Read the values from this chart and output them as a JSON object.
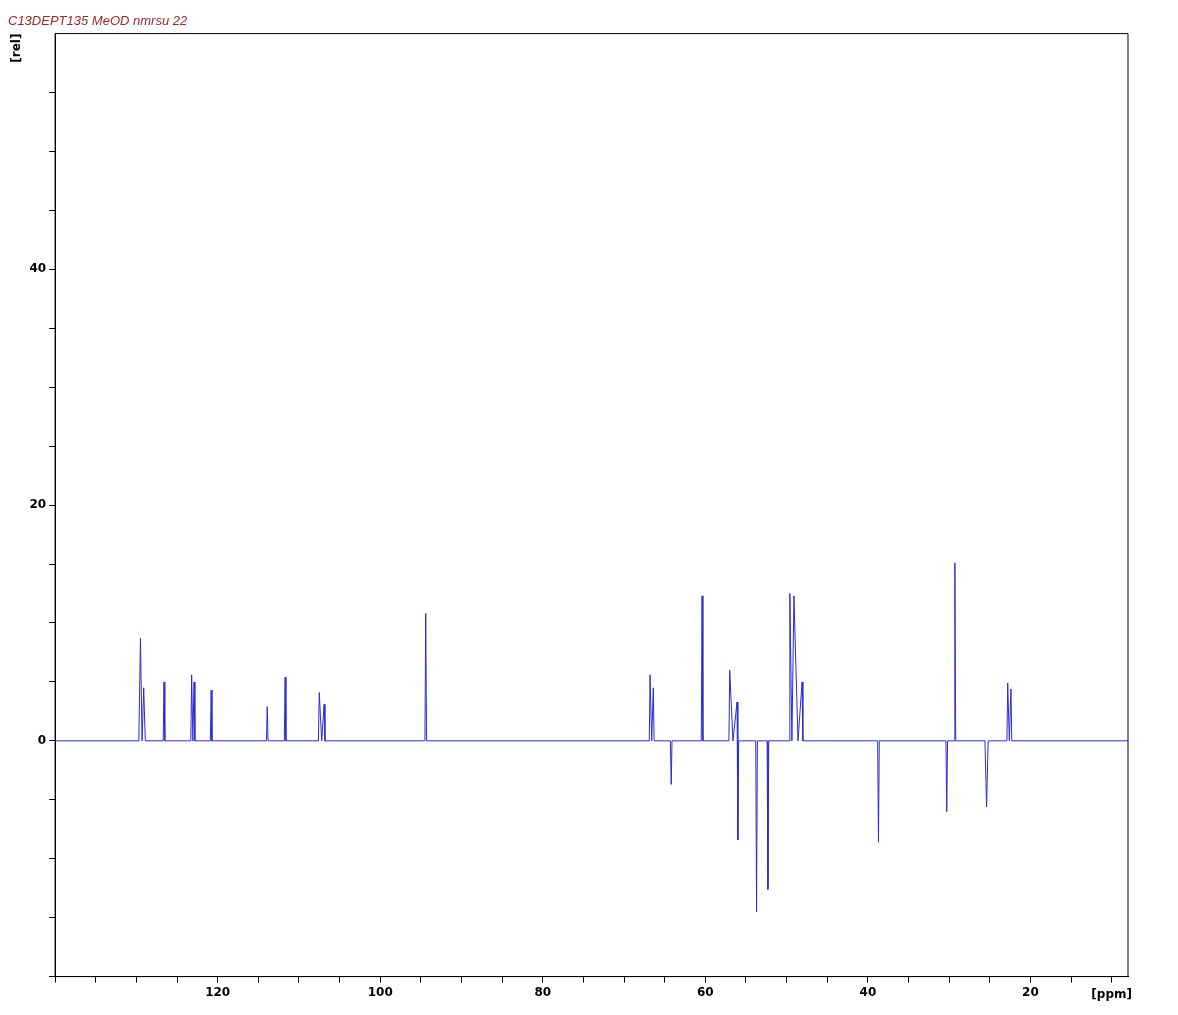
{
  "chart_data": {
    "type": "line",
    "title": "C13DEPT135 MeOD nmrsu 22",
    "xlabel": "[ppm]",
    "ylabel": "[rel]",
    "xlim": [
      140,
      8
    ],
    "ylim": [
      -20,
      60
    ],
    "xticks": [
      {
        "value": 140,
        "label": null
      },
      {
        "value": 135,
        "label": null
      },
      {
        "value": 130,
        "label": null
      },
      {
        "value": 125,
        "label": null
      },
      120,
      {
        "value": 115,
        "label": null
      },
      {
        "value": 110,
        "label": null
      },
      {
        "value": 105,
        "label": null
      },
      100,
      {
        "value": 95,
        "label": null
      },
      {
        "value": 90,
        "label": null
      },
      {
        "value": 85,
        "label": null
      },
      80,
      {
        "value": 75,
        "label": null
      },
      {
        "value": 70,
        "label": null
      },
      {
        "value": 65,
        "label": null
      },
      60,
      {
        "value": 55,
        "label": null
      },
      {
        "value": 50,
        "label": null
      },
      {
        "value": 45,
        "label": null
      },
      40,
      {
        "value": 35,
        "label": null
      },
      {
        "value": 30,
        "label": null
      },
      {
        "value": 25,
        "label": null
      },
      20,
      {
        "value": 15,
        "label": null
      },
      {
        "value": 10,
        "label": null
      }
    ],
    "yticks": [
      {
        "value": -20,
        "label": null
      },
      {
        "value": -15,
        "label": null
      },
      {
        "value": -10,
        "label": null
      },
      {
        "value": -5,
        "label": null
      },
      0,
      {
        "value": 5,
        "label": null
      },
      {
        "value": 10,
        "label": null
      },
      {
        "value": 15,
        "label": null
      },
      20,
      {
        "value": 25,
        "label": null
      },
      {
        "value": 30,
        "label": null
      },
      {
        "value": 35,
        "label": null
      },
      40,
      {
        "value": 45,
        "label": null
      },
      {
        "value": 50,
        "label": null
      },
      {
        "value": 55,
        "label": null
      }
    ],
    "grid": false,
    "legend": false,
    "marker": "none",
    "line_style": "solid",
    "series": [
      {
        "color": "#2b2bd6",
        "x": [
          140,
          129.7,
          129.5,
          129.3,
          129.1,
          128.9,
          126.7,
          126.6,
          126.5,
          123.3,
          123.2,
          123.05,
          122.9,
          122.8,
          120.9,
          120.8,
          120.7,
          114.0,
          113.9,
          113.8,
          111.8,
          111.7,
          111.6,
          107.6,
          107.5,
          107.2,
          106.9,
          106.8,
          94.5,
          94.4,
          94.3,
          66.9,
          66.8,
          66.6,
          66.4,
          66.3,
          64.3,
          64.2,
          64.1,
          60.5,
          60.4,
          60.3,
          57.1,
          57.0,
          56.6,
          56.1,
          56.0,
          55.9,
          55.8,
          53.8,
          53.7,
          53.6,
          52.4,
          52.3,
          52.2,
          49.7,
          49.6,
          49.35,
          49.1,
          48.6,
          48.1,
          48.0,
          38.8,
          38.7,
          38.6,
          30.4,
          30.3,
          30.2,
          29.4,
          29.3,
          29.2,
          25.6,
          25.4,
          25.2,
          22.9,
          22.8,
          22.6,
          22.4,
          22.3,
          8
        ],
        "values": [
          0,
          0,
          8.7,
          0,
          4.5,
          0,
          0,
          5.0,
          0,
          0,
          5.6,
          0,
          5.0,
          0,
          0,
          4.3,
          0,
          0,
          2.9,
          0,
          0,
          5.4,
          0,
          0,
          4.1,
          0,
          3.1,
          0,
          0,
          10.8,
          0,
          0,
          5.6,
          0,
          4.5,
          0,
          0,
          -3.7,
          0,
          0,
          12.3,
          0,
          0,
          6.0,
          0,
          3.3,
          -8.4,
          0,
          0,
          0,
          -14.5,
          0,
          0,
          -12.6,
          0,
          0,
          12.5,
          0,
          12.3,
          0,
          5.0,
          0,
          0,
          -8.6,
          0,
          0,
          -6.0,
          0,
          0,
          15.1,
          0,
          0,
          -5.6,
          0,
          0,
          4.9,
          0,
          4.4,
          0,
          0
        ]
      }
    ]
  }
}
